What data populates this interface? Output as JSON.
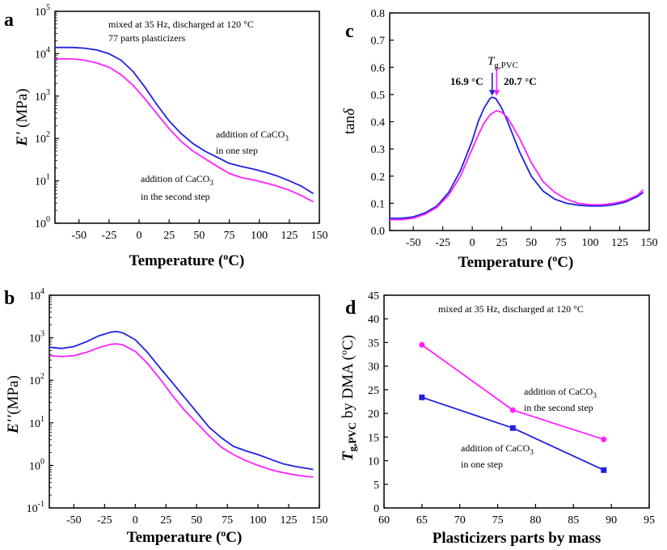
{
  "colors": {
    "one_step": "#2020e0",
    "second_step": "#ff20ff",
    "axis": "#000000"
  },
  "chart_data": [
    {
      "id": "a",
      "type": "line",
      "panel_label": "a",
      "xlabel": "Temperature (",
      "xlabel_unit": "C)",
      "ylabel": "(MPa)",
      "ylabel_symbol": "E'",
      "xlim": [
        -70,
        150
      ],
      "ylim_log10": [
        0,
        5
      ],
      "yscale": "log",
      "x_ticks": [
        "-50",
        "-25",
        "0",
        "25",
        "50",
        "75",
        "100",
        "125",
        "150"
      ],
      "y_tick_exponents": [
        "0",
        "1",
        "2",
        "3",
        "4",
        "5"
      ],
      "y_tick_base": "10",
      "annotations": {
        "top_line1": "mixed at 35 Hz, discharged at 120 °C",
        "top_line2": "77 parts plasticizers",
        "one_step_line1": "addition of CaCO",
        "one_step_sub": "3",
        "one_step_line2": "in one step",
        "second_step_line1": "addition of CaCO",
        "second_step_sub": "3",
        "second_step_line2": "in the second step"
      },
      "series": [
        {
          "name": "addition of CaCO3 in one step",
          "color_key": "one_step",
          "x": [
            -70,
            -55,
            -45,
            -35,
            -25,
            -15,
            -5,
            5,
            15,
            25,
            35,
            45,
            55,
            65,
            75,
            85,
            95,
            105,
            115,
            125,
            135,
            145
          ],
          "y": [
            14000,
            14000,
            13500,
            12200,
            10000,
            7000,
            3800,
            1600,
            620,
            260,
            130,
            75,
            50,
            36,
            26,
            22,
            19,
            16,
            13,
            10,
            7.5,
            5
          ]
        },
        {
          "name": "addition of CaCO3 in the second step",
          "color_key": "second_step",
          "x": [
            -70,
            -55,
            -45,
            -35,
            -25,
            -15,
            -5,
            5,
            15,
            25,
            35,
            45,
            55,
            65,
            75,
            85,
            95,
            105,
            115,
            125,
            135,
            145
          ],
          "y": [
            7500,
            7500,
            7000,
            6000,
            4800,
            3200,
            1800,
            850,
            380,
            170,
            85,
            50,
            33,
            22,
            15,
            12,
            10.5,
            9,
            7.5,
            6,
            4.5,
            3.2
          ]
        }
      ]
    },
    {
      "id": "b",
      "type": "line",
      "panel_label": "b",
      "xlabel": "Temperature (",
      "xlabel_unit": "C)",
      "ylabel": "(MPa)",
      "ylabel_symbol": "E''",
      "xlim": [
        -70,
        150
      ],
      "ylim_log10": [
        -1,
        4
      ],
      "yscale": "log",
      "x_ticks": [
        "-50",
        "-25",
        "0",
        "25",
        "50",
        "75",
        "100",
        "125",
        "150"
      ],
      "y_tick_exponents": [
        "-1",
        "0",
        "1",
        "2",
        "3",
        "4"
      ],
      "y_tick_base": "10",
      "series": [
        {
          "name": "addition of CaCO3 in one step",
          "color_key": "one_step",
          "x": [
            -70,
            -60,
            -50,
            -40,
            -30,
            -20,
            -15,
            -10,
            0,
            10,
            20,
            30,
            40,
            50,
            60,
            70,
            80,
            90,
            100,
            110,
            120,
            130,
            140,
            145
          ],
          "y": [
            600,
            560,
            620,
            800,
            1100,
            1350,
            1400,
            1300,
            900,
            450,
            200,
            90,
            40,
            18,
            8,
            4.5,
            2.8,
            2.2,
            1.8,
            1.4,
            1.1,
            0.95,
            0.85,
            0.8
          ]
        },
        {
          "name": "addition of CaCO3 in the second step",
          "color_key": "second_step",
          "x": [
            -70,
            -60,
            -50,
            -40,
            -30,
            -20,
            -15,
            -10,
            0,
            10,
            20,
            30,
            40,
            50,
            60,
            70,
            80,
            90,
            100,
            110,
            120,
            130,
            140,
            145
          ],
          "y": [
            380,
            360,
            380,
            450,
            580,
            700,
            720,
            680,
            480,
            250,
            110,
            45,
            20,
            10,
            5,
            2.7,
            1.8,
            1.3,
            1.0,
            0.8,
            0.68,
            0.6,
            0.55,
            0.53
          ]
        }
      ]
    },
    {
      "id": "c",
      "type": "line",
      "panel_label": "c",
      "xlabel": "Temperature (",
      "xlabel_unit": "C)",
      "ylabel": "tan",
      "ylabel_symbol": "δ",
      "xlim": [
        -70,
        150
      ],
      "ylim": [
        0,
        0.8
      ],
      "x_ticks": [
        "-50",
        "-25",
        "0",
        "25",
        "50",
        "75",
        "100",
        "125",
        "150"
      ],
      "y_ticks": [
        "0.0",
        "0.1",
        "0.2",
        "0.3",
        "0.4",
        "0.5",
        "0.6",
        "0.7",
        "0.8"
      ],
      "annotations": {
        "tg_main": "T",
        "tg_sub": "g,PVC",
        "left_value": "16.9 °C",
        "right_value": "20.7 °C"
      },
      "peak_markers": {
        "one_step_x": 16.9,
        "second_step_x": 20.7
      },
      "series": [
        {
          "name": "addition of CaCO3 in one step",
          "color_key": "one_step",
          "x": [
            -70,
            -60,
            -50,
            -40,
            -30,
            -20,
            -10,
            0,
            5,
            10,
            15,
            17,
            20,
            25,
            30,
            40,
            50,
            60,
            70,
            80,
            90,
            100,
            110,
            120,
            130,
            140,
            145
          ],
          "y": [
            0.045,
            0.045,
            0.05,
            0.065,
            0.09,
            0.14,
            0.22,
            0.33,
            0.4,
            0.45,
            0.485,
            0.49,
            0.485,
            0.45,
            0.4,
            0.29,
            0.2,
            0.145,
            0.115,
            0.1,
            0.093,
            0.09,
            0.09,
            0.095,
            0.105,
            0.125,
            0.14
          ]
        },
        {
          "name": "addition of CaCO3 in the second step",
          "color_key": "second_step",
          "x": [
            -70,
            -60,
            -50,
            -40,
            -30,
            -20,
            -10,
            0,
            5,
            10,
            15,
            20,
            21,
            25,
            30,
            40,
            50,
            60,
            70,
            80,
            90,
            100,
            110,
            120,
            130,
            140,
            145
          ],
          "y": [
            0.04,
            0.04,
            0.045,
            0.06,
            0.085,
            0.13,
            0.2,
            0.3,
            0.35,
            0.395,
            0.425,
            0.44,
            0.44,
            0.435,
            0.415,
            0.34,
            0.25,
            0.18,
            0.14,
            0.115,
            0.1,
            0.095,
            0.095,
            0.1,
            0.11,
            0.13,
            0.15
          ]
        }
      ]
    },
    {
      "id": "d",
      "type": "line",
      "panel_label": "d",
      "xlabel": "Plasticizers parts by mass",
      "ylabel_prefix": "T",
      "ylabel_sub": "g,PVC",
      "ylabel": "by DMA (",
      "ylabel_unit": "C)",
      "xlim": [
        60,
        95
      ],
      "ylim": [
        0,
        45
      ],
      "x_ticks": [
        "60",
        "65",
        "70",
        "75",
        "80",
        "85",
        "90",
        "95"
      ],
      "y_ticks": [
        "0",
        "5",
        "10",
        "15",
        "20",
        "25",
        "30",
        "35",
        "40",
        "45"
      ],
      "annotations": {
        "top": "mixed at 35 Hz, discharged at 120 °C",
        "second_step_line1": "addition of CaCO",
        "second_step_sub": "3",
        "second_step_line2": "in the second step",
        "one_step_line1": "addition of CaCO",
        "one_step_sub": "3",
        "one_step_line2": "in one step"
      },
      "series": [
        {
          "name": "addition of CaCO3 in the second step",
          "color_key": "second_step",
          "marker": "circle",
          "x": [
            65,
            77,
            89
          ],
          "y": [
            34.5,
            20.7,
            14.5
          ]
        },
        {
          "name": "addition of CaCO3 in one step",
          "color_key": "one_step",
          "marker": "square",
          "x": [
            65,
            77,
            89
          ],
          "y": [
            23.4,
            16.9,
            8.0
          ]
        }
      ]
    }
  ]
}
